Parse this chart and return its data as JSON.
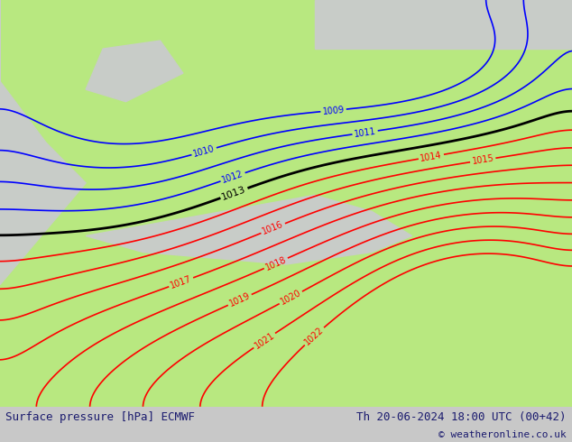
{
  "title_left": "Surface pressure [hPa] ECMWF",
  "title_right": "Th 20-06-2024 18:00 UTC (00+42)",
  "copyright": "© weatheronline.co.uk",
  "bg_color": "#c8c8c8",
  "land_color": "#b8e880",
  "sea_color": "#d8d8d8",
  "contour_color_low": "#ff0000",
  "contour_color_high": "#0000ff",
  "contour_color_1013": "#000000",
  "label_fontsize": 7,
  "title_fontsize": 9,
  "pressure_min": 1009,
  "pressure_max": 1022,
  "figsize": [
    6.34,
    4.9
  ],
  "dpi": 100
}
